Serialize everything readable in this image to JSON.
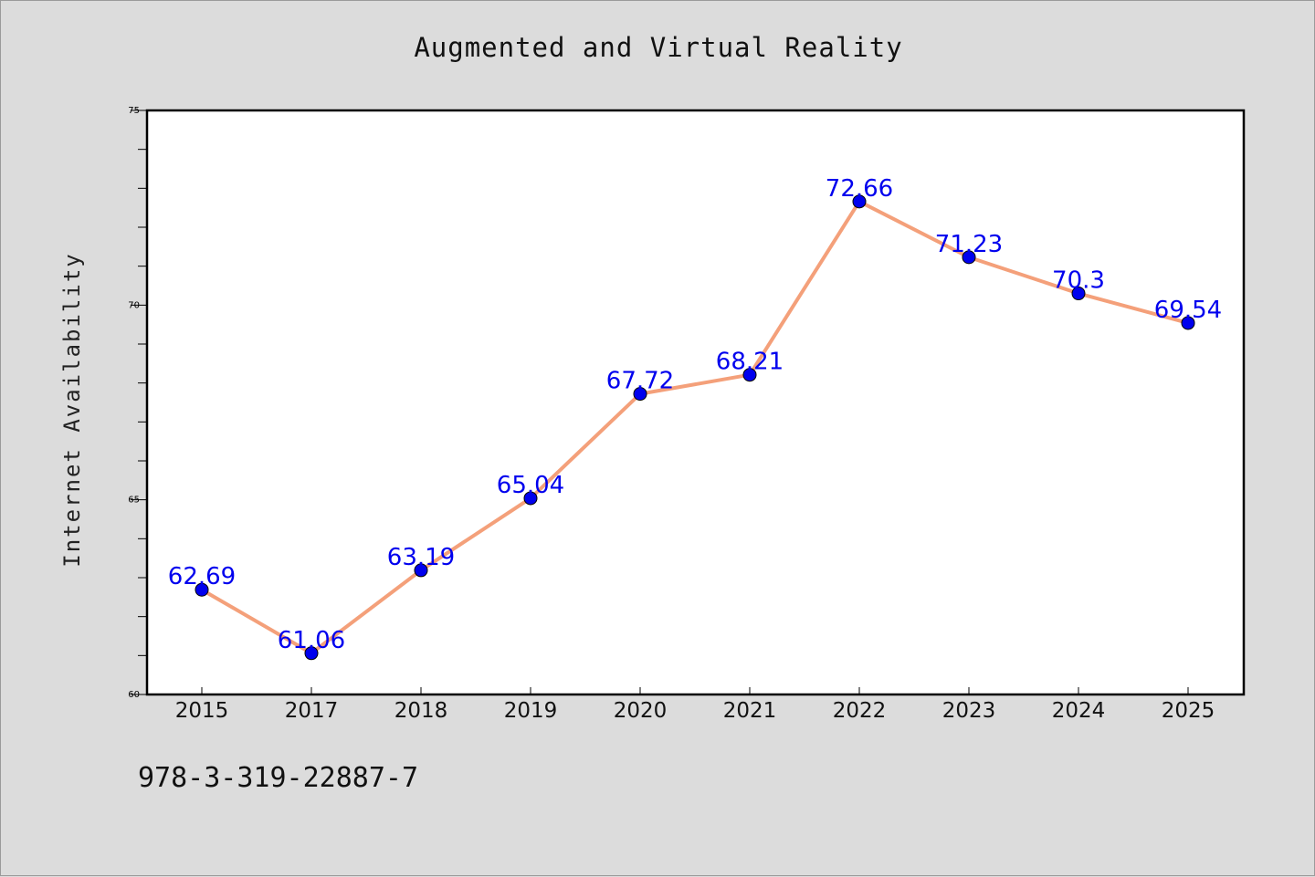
{
  "chart_data": {
    "type": "line",
    "title": "Augmented and Virtual Reality",
    "xlabel": "",
    "ylabel": "Internet Availability",
    "categories": [
      "2015",
      "2017",
      "2018",
      "2019",
      "2020",
      "2021",
      "2022",
      "2023",
      "2024",
      "2025"
    ],
    "series": [
      {
        "values": [
          62.69,
          61.06,
          63.19,
          65.04,
          67.72,
          68.21,
          72.66,
          71.23,
          70.3,
          69.54
        ],
        "labels": [
          "62.69",
          "61.06",
          "63.19",
          "65.04",
          "67.72",
          "68.21",
          "72.66",
          "71.23",
          "70.3",
          "69.54"
        ],
        "line_color": "#f4a07a",
        "marker_color": "#0000ee"
      }
    ],
    "ylim": [
      60,
      75
    ],
    "yticks": [
      "60",
      "65",
      "70",
      "75"
    ],
    "grid": false,
    "legend": "none",
    "label_color": "#0000ee"
  },
  "footer": {
    "code": "978-3-319-22887-7"
  },
  "colors": {
    "background": "#dcdcdc",
    "plot_background": "#ffffff"
  }
}
